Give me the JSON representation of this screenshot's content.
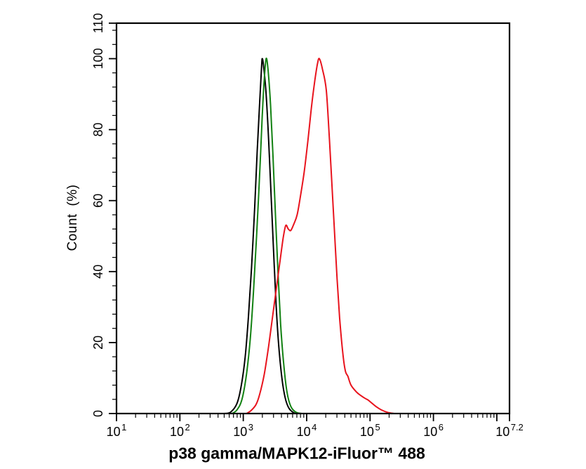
{
  "figure": {
    "y_axis_label": "Count (%)",
    "x_axis_title": "p38 gamma/MAPK12-iFluor™ 488"
  },
  "chart_data": {
    "type": "line",
    "subtype": "flow-cytometry-overlay-histogram",
    "title": "",
    "xlabel": "p38 gamma/MAPK12-iFluor™ 488",
    "ylabel": "Count (%)",
    "x_scale": "log10",
    "grid": false,
    "legend": "none",
    "x_axis": {
      "log_min": 1,
      "log_max": 7.2,
      "major_ticks": [
        {
          "base": "10",
          "exp": "1",
          "log": 1
        },
        {
          "base": "10",
          "exp": "2",
          "log": 2
        },
        {
          "base": "10",
          "exp": "3",
          "log": 3
        },
        {
          "base": "10",
          "exp": "4",
          "log": 4
        },
        {
          "base": "10",
          "exp": "5",
          "log": 5
        },
        {
          "base": "10",
          "exp": "6",
          "log": 6
        },
        {
          "base": "10",
          "exp": "7",
          "log": 7,
          "unlabeled": true
        },
        {
          "base": "10",
          "exp": "7.2",
          "log": 7.2
        }
      ]
    },
    "y_axis": {
      "min": 0,
      "max": 110,
      "major_ticks": [
        0,
        20,
        40,
        60,
        80,
        100,
        110
      ],
      "minor_step": 4
    },
    "axis_color": "#000000",
    "series": [
      {
        "name": "black-curve",
        "color": "#000000",
        "peak": {
          "log10_x": 3.3,
          "x": 2000,
          "count_pct": 100
        },
        "points": [
          [
            2.7,
            0
          ],
          [
            2.8,
            0.4
          ],
          [
            2.9,
            2.8
          ],
          [
            2.97,
            8
          ],
          [
            3.03,
            16
          ],
          [
            3.08,
            27
          ],
          [
            3.13,
            41
          ],
          [
            3.18,
            58
          ],
          [
            3.22,
            74
          ],
          [
            3.26,
            88
          ],
          [
            3.29,
            98
          ],
          [
            3.3,
            100
          ],
          [
            3.32,
            98
          ],
          [
            3.36,
            90
          ],
          [
            3.4,
            77
          ],
          [
            3.44,
            61
          ],
          [
            3.48,
            45
          ],
          [
            3.52,
            30
          ],
          [
            3.56,
            19
          ],
          [
            3.61,
            10
          ],
          [
            3.66,
            4.5
          ],
          [
            3.72,
            1.5
          ],
          [
            3.8,
            0.2
          ],
          [
            3.88,
            0
          ]
        ]
      },
      {
        "name": "green-curve",
        "color": "#128212",
        "peak": {
          "log10_x": 3.36,
          "x": 2290,
          "count_pct": 100
        },
        "points": [
          [
            2.82,
            0
          ],
          [
            2.9,
            1
          ],
          [
            2.98,
            4
          ],
          [
            3.05,
            11
          ],
          [
            3.11,
            21
          ],
          [
            3.16,
            34
          ],
          [
            3.21,
            50
          ],
          [
            3.26,
            68
          ],
          [
            3.3,
            84
          ],
          [
            3.33,
            94
          ],
          [
            3.36,
            100
          ],
          [
            3.39,
            97
          ],
          [
            3.43,
            87
          ],
          [
            3.47,
            72
          ],
          [
            3.51,
            55
          ],
          [
            3.55,
            39
          ],
          [
            3.59,
            25
          ],
          [
            3.64,
            13.5
          ],
          [
            3.69,
            6
          ],
          [
            3.75,
            2
          ],
          [
            3.83,
            0.4
          ],
          [
            3.92,
            0
          ]
        ]
      },
      {
        "name": "red-curve",
        "color": "#e8131d",
        "peak": {
          "log10_x": 4.2,
          "x": 15800,
          "count_pct": 100
        },
        "shoulder": {
          "log10_x": 3.67,
          "count_pct": 53
        },
        "points": [
          [
            3.05,
            0
          ],
          [
            3.12,
            0.8
          ],
          [
            3.2,
            2.5
          ],
          [
            3.26,
            5.5
          ],
          [
            3.33,
            11
          ],
          [
            3.4,
            19
          ],
          [
            3.46,
            27
          ],
          [
            3.52,
            35
          ],
          [
            3.58,
            43
          ],
          [
            3.63,
            49.5
          ],
          [
            3.67,
            53
          ],
          [
            3.71,
            52
          ],
          [
            3.75,
            51.6
          ],
          [
            3.8,
            53.5
          ],
          [
            3.85,
            56
          ],
          [
            3.9,
            61
          ],
          [
            3.96,
            68
          ],
          [
            4.02,
            77
          ],
          [
            4.08,
            87
          ],
          [
            4.13,
            94
          ],
          [
            4.17,
            98.5
          ],
          [
            4.2,
            100
          ],
          [
            4.25,
            97
          ],
          [
            4.31,
            91
          ],
          [
            4.36,
            77
          ],
          [
            4.4,
            64
          ],
          [
            4.44,
            51
          ],
          [
            4.48,
            38
          ],
          [
            4.52,
            27
          ],
          [
            4.57,
            17
          ],
          [
            4.61,
            12
          ],
          [
            4.65,
            10.5
          ],
          [
            4.7,
            8
          ],
          [
            4.79,
            6
          ],
          [
            4.86,
            5
          ],
          [
            4.92,
            4.3
          ],
          [
            4.97,
            3.8
          ],
          [
            5.03,
            2.9
          ],
          [
            5.1,
            1.9
          ],
          [
            5.18,
            1.0
          ],
          [
            5.28,
            0.3
          ],
          [
            5.38,
            0
          ]
        ]
      }
    ]
  }
}
